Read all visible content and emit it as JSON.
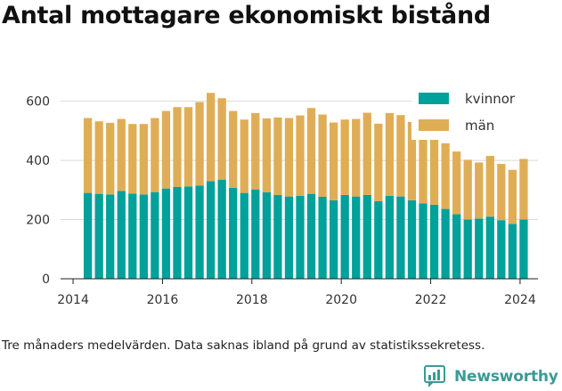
{
  "title": "Antal mottagare ekonomiskt bistånd",
  "footnote": "Tre månaders medelvärden. Data saknas ibland på grund av statistikssekretess.",
  "brand": {
    "name": "Newsworthy",
    "icon": "newsworthy-logo-icon",
    "color": "#3a9a94"
  },
  "colors": {
    "kvinnor": "#00a19a",
    "man": "#e0ad57",
    "grid": "#d9d9d9",
    "axis": "#222222"
  },
  "chart_data": {
    "type": "bar",
    "stacked": true,
    "title": "Antal mottagare ekonomiskt bistånd",
    "xlabel": "",
    "ylabel": "",
    "xlim": [
      2013.72,
      2024.4
    ],
    "ylim": [
      0,
      650
    ],
    "y_ticks": [
      0,
      200,
      400,
      600
    ],
    "x_ticks": [
      2014,
      2016,
      2018,
      2020,
      2022,
      2024
    ],
    "x_tick_labels": [
      "2014",
      "2016",
      "2018",
      "2020",
      "2022",
      "2024"
    ],
    "grid": true,
    "legend_position": "top-right",
    "x": [
      2014.33,
      2014.58,
      2014.83,
      2015.08,
      2015.33,
      2015.58,
      2015.83,
      2016.08,
      2016.33,
      2016.58,
      2016.83,
      2017.08,
      2017.33,
      2017.58,
      2017.83,
      2018.08,
      2018.33,
      2018.58,
      2018.83,
      2019.08,
      2019.33,
      2019.58,
      2019.83,
      2020.08,
      2020.33,
      2020.58,
      2020.83,
      2021.08,
      2021.33,
      2021.58,
      2021.83,
      2022.08,
      2022.33,
      2022.58,
      2022.83,
      2023.08,
      2023.33,
      2023.58,
      2023.83,
      2024.08
    ],
    "series": [
      {
        "name": "kvinnor",
        "color": "#00a19a",
        "values": [
          290,
          287,
          285,
          297,
          288,
          285,
          293,
          305,
          310,
          312,
          315,
          330,
          335,
          307,
          290,
          302,
          292,
          283,
          278,
          280,
          287,
          277,
          265,
          283,
          278,
          283,
          262,
          280,
          278,
          265,
          255,
          250,
          236,
          218,
          200,
          203,
          210,
          198,
          185,
          200
        ]
      },
      {
        "name": "män",
        "color": "#e0ad57",
        "values": [
          253,
          245,
          242,
          243,
          235,
          238,
          250,
          262,
          270,
          268,
          282,
          298,
          275,
          260,
          248,
          258,
          250,
          262,
          265,
          272,
          290,
          278,
          263,
          255,
          262,
          278,
          262,
          280,
          275,
          265,
          238,
          232,
          222,
          212,
          202,
          190,
          205,
          190,
          183,
          205
        ]
      }
    ]
  }
}
